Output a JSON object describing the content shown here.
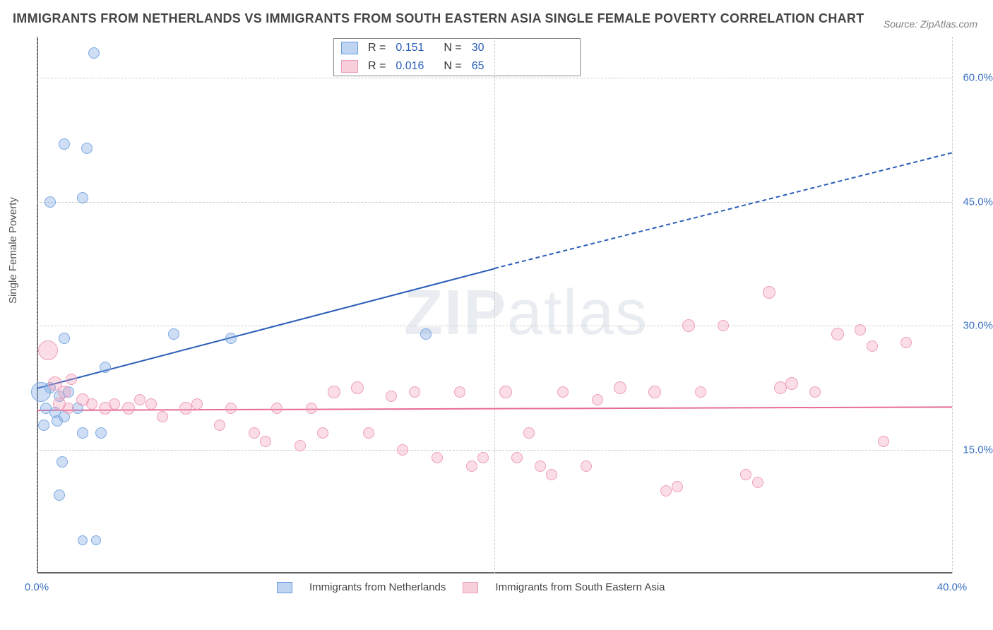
{
  "title": "IMMIGRANTS FROM NETHERLANDS VS IMMIGRANTS FROM SOUTH EASTERN ASIA SINGLE FEMALE POVERTY CORRELATION CHART",
  "source": "Source: ZipAtlas.com",
  "ylabel": "Single Female Poverty",
  "watermark": "ZIPatlas",
  "chart": {
    "type": "scatter",
    "xlim": [
      0,
      40
    ],
    "ylim": [
      0,
      65
    ],
    "xticks": [
      0,
      40
    ],
    "xtick_labels": [
      "0.0%",
      "40.0%"
    ],
    "yticks": [
      15,
      30,
      45,
      60
    ],
    "ytick_labels": [
      "15.0%",
      "30.0%",
      "45.0%",
      "60.0%"
    ],
    "xgridlines": [
      0,
      20,
      40
    ],
    "grid_color": "#cccccc",
    "background_color": "#ffffff",
    "axis_color": "#666666",
    "series": [
      {
        "name": "Immigrants from Netherlands",
        "color_fill": "rgba(125,169,226,0.38)",
        "color_stroke": "#7da9e2",
        "trend_color": "#2a5db8",
        "R": "0.151",
        "N": "30",
        "trend": {
          "x1": 0,
          "y1": 22.5,
          "x2": 20,
          "y2": 37,
          "x3": 40,
          "y3": 51
        },
        "points": [
          {
            "x": 2.5,
            "y": 63,
            "r": 8
          },
          {
            "x": 1.2,
            "y": 52,
            "r": 8
          },
          {
            "x": 2.2,
            "y": 51.5,
            "r": 8
          },
          {
            "x": 0.6,
            "y": 45,
            "r": 8
          },
          {
            "x": 2.0,
            "y": 45.5,
            "r": 8
          },
          {
            "x": 1.2,
            "y": 28.5,
            "r": 8
          },
          {
            "x": 6.0,
            "y": 29,
            "r": 8
          },
          {
            "x": 8.5,
            "y": 28.5,
            "r": 8
          },
          {
            "x": 17.0,
            "y": 29,
            "r": 8
          },
          {
            "x": 3.0,
            "y": 25,
            "r": 8
          },
          {
            "x": 0.2,
            "y": 22,
            "r": 14
          },
          {
            "x": 0.6,
            "y": 22.5,
            "r": 8
          },
          {
            "x": 1.0,
            "y": 21.5,
            "r": 8
          },
          {
            "x": 1.4,
            "y": 22,
            "r": 8
          },
          {
            "x": 0.4,
            "y": 20,
            "r": 8
          },
          {
            "x": 0.8,
            "y": 19.5,
            "r": 8
          },
          {
            "x": 1.2,
            "y": 19,
            "r": 8
          },
          {
            "x": 1.8,
            "y": 20,
            "r": 8
          },
          {
            "x": 0.3,
            "y": 18,
            "r": 8
          },
          {
            "x": 0.9,
            "y": 18.5,
            "r": 8
          },
          {
            "x": 2.0,
            "y": 17,
            "r": 8
          },
          {
            "x": 2.8,
            "y": 17,
            "r": 8
          },
          {
            "x": 1.1,
            "y": 13.5,
            "r": 8
          },
          {
            "x": 1.0,
            "y": 9.5,
            "r": 8
          },
          {
            "x": 2.0,
            "y": 4,
            "r": 7
          },
          {
            "x": 2.6,
            "y": 4,
            "r": 7
          }
        ]
      },
      {
        "name": "Immigrants from South Eastern Asia",
        "color_fill": "rgba(240,159,182,0.35)",
        "color_stroke": "#ee9fb7",
        "trend_color": "#e76a99",
        "R": "0.016",
        "N": "65",
        "trend": {
          "x1": 0,
          "y1": 19.8,
          "x2": 40,
          "y2": 20.2
        },
        "points": [
          {
            "x": 0.5,
            "y": 27,
            "r": 14
          },
          {
            "x": 0.8,
            "y": 23,
            "r": 10
          },
          {
            "x": 1.2,
            "y": 22,
            "r": 9
          },
          {
            "x": 1.5,
            "y": 23.5,
            "r": 8
          },
          {
            "x": 1.0,
            "y": 20.5,
            "r": 9
          },
          {
            "x": 1.4,
            "y": 20,
            "r": 8
          },
          {
            "x": 2.0,
            "y": 21,
            "r": 9
          },
          {
            "x": 2.4,
            "y": 20.5,
            "r": 8
          },
          {
            "x": 3.0,
            "y": 20,
            "r": 9
          },
          {
            "x": 3.4,
            "y": 20.5,
            "r": 8
          },
          {
            "x": 4.0,
            "y": 20,
            "r": 9
          },
          {
            "x": 4.5,
            "y": 21,
            "r": 8
          },
          {
            "x": 5.0,
            "y": 20.5,
            "r": 8
          },
          {
            "x": 5.5,
            "y": 19,
            "r": 8
          },
          {
            "x": 6.5,
            "y": 20,
            "r": 9
          },
          {
            "x": 7.0,
            "y": 20.5,
            "r": 8
          },
          {
            "x": 8.0,
            "y": 18,
            "r": 8
          },
          {
            "x": 8.5,
            "y": 20,
            "r": 8
          },
          {
            "x": 9.5,
            "y": 17,
            "r": 8
          },
          {
            "x": 10.0,
            "y": 16,
            "r": 8
          },
          {
            "x": 10.5,
            "y": 20,
            "r": 8
          },
          {
            "x": 11.5,
            "y": 15.5,
            "r": 8
          },
          {
            "x": 12.0,
            "y": 20,
            "r": 8
          },
          {
            "x": 12.5,
            "y": 17,
            "r": 8
          },
          {
            "x": 13.0,
            "y": 22,
            "r": 9
          },
          {
            "x": 14.0,
            "y": 22.5,
            "r": 9
          },
          {
            "x": 14.5,
            "y": 17,
            "r": 8
          },
          {
            "x": 15.5,
            "y": 21.5,
            "r": 8
          },
          {
            "x": 16.0,
            "y": 15,
            "r": 8
          },
          {
            "x": 16.5,
            "y": 22,
            "r": 8
          },
          {
            "x": 17.5,
            "y": 14,
            "r": 8
          },
          {
            "x": 18.5,
            "y": 22,
            "r": 8
          },
          {
            "x": 19.0,
            "y": 13,
            "r": 8
          },
          {
            "x": 19.5,
            "y": 14,
            "r": 8
          },
          {
            "x": 20.5,
            "y": 22,
            "r": 9
          },
          {
            "x": 21.0,
            "y": 14,
            "r": 8
          },
          {
            "x": 21.5,
            "y": 17,
            "r": 8
          },
          {
            "x": 22.0,
            "y": 13,
            "r": 8
          },
          {
            "x": 22.5,
            "y": 12,
            "r": 8
          },
          {
            "x": 23.0,
            "y": 22,
            "r": 8
          },
          {
            "x": 24.0,
            "y": 13,
            "r": 8
          },
          {
            "x": 24.5,
            "y": 21,
            "r": 8
          },
          {
            "x": 25.5,
            "y": 22.5,
            "r": 9
          },
          {
            "x": 27.0,
            "y": 22,
            "r": 9
          },
          {
            "x": 27.5,
            "y": 10,
            "r": 8
          },
          {
            "x": 28.0,
            "y": 10.5,
            "r": 8
          },
          {
            "x": 28.5,
            "y": 30,
            "r": 9
          },
          {
            "x": 29.0,
            "y": 22,
            "r": 8
          },
          {
            "x": 30.0,
            "y": 30,
            "r": 8
          },
          {
            "x": 31.0,
            "y": 12,
            "r": 8
          },
          {
            "x": 31.5,
            "y": 11,
            "r": 8
          },
          {
            "x": 32.0,
            "y": 34,
            "r": 9
          },
          {
            "x": 32.5,
            "y": 22.5,
            "r": 9
          },
          {
            "x": 33.0,
            "y": 23,
            "r": 9
          },
          {
            "x": 34.0,
            "y": 22,
            "r": 8
          },
          {
            "x": 35.0,
            "y": 29,
            "r": 9
          },
          {
            "x": 36.0,
            "y": 29.5,
            "r": 8
          },
          {
            "x": 36.5,
            "y": 27.5,
            "r": 8
          },
          {
            "x": 37.0,
            "y": 16,
            "r": 8
          },
          {
            "x": 38.0,
            "y": 28,
            "r": 8
          }
        ]
      }
    ]
  },
  "legend_top": [
    {
      "series": 0,
      "R_label": "R =",
      "N_label": "N ="
    },
    {
      "series": 1,
      "R_label": "R =",
      "N_label": "N ="
    }
  ],
  "legend_bottom": [
    {
      "series": 0
    },
    {
      "series": 1
    }
  ]
}
